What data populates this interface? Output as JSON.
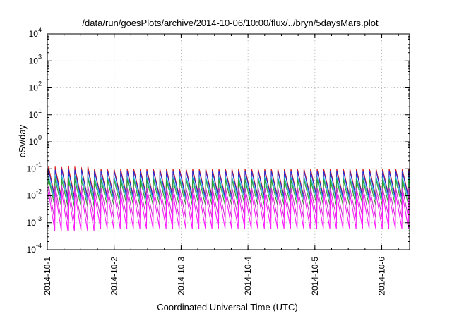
{
  "chart_data": {
    "type": "line",
    "title": "/data/run/goesPlots/archive/2014-10-06/10:00/flux/../bryn/5daysMars.plot",
    "xlabel": "Coordinated Universal Time (UTC)",
    "ylabel": "cSv/day",
    "yscale": "log",
    "ylim": [
      0.0001,
      10000
    ],
    "xlim": [
      "2014-10-01T00:00",
      "2014-10-06T10:00"
    ],
    "y_ticks": [
      {
        "value": 0.0001,
        "base": "10",
        "exp": "-4"
      },
      {
        "value": 0.001,
        "base": "10",
        "exp": "-3"
      },
      {
        "value": 0.01,
        "base": "10",
        "exp": "-2"
      },
      {
        "value": 0.1,
        "base": "10",
        "exp": "-1"
      },
      {
        "value": 1,
        "base": "10",
        "exp": "0"
      },
      {
        "value": 10,
        "base": "10",
        "exp": "1"
      },
      {
        "value": 100,
        "base": "10",
        "exp": "2"
      },
      {
        "value": 1000,
        "base": "10",
        "exp": "3"
      },
      {
        "value": 10000,
        "base": "10",
        "exp": "4"
      }
    ],
    "x_ticks": [
      "2014-10-1",
      "2014-10-2",
      "2014-10-3",
      "2014-10-4",
      "2014-10-5",
      "2014-10-6"
    ],
    "grid": true,
    "legend": "none",
    "sawtooth_period_hours": 2.35,
    "sawtooth_first_peak": "2014-10-01T00:20",
    "series": [
      {
        "color": "#e0201c",
        "peak": 0.1,
        "trough": 0.0095,
        "early_peak": 0.125,
        "early_trough": 0.009
      },
      {
        "color": "#2a2acc",
        "peak": 0.085,
        "trough": 0.0085,
        "early_peak": 0.1,
        "early_trough": 0.008
      },
      {
        "color": "#20b0c8",
        "peak": 0.05,
        "trough": 0.007,
        "early_peak": 0.06,
        "early_trough": 0.006
      },
      {
        "color": "#2ca02c",
        "peak": 0.04,
        "trough": 0.0045,
        "early_peak": 0.045,
        "early_trough": 0.004
      },
      {
        "color": "#c836c8",
        "peak": 0.02,
        "trough": 0.0015,
        "early_peak": 0.025,
        "early_trough": 0.0012
      },
      {
        "color": "#ff1aff",
        "peak": 0.012,
        "trough": 0.0006,
        "early_peak": 0.015,
        "early_trough": 0.0005
      }
    ]
  }
}
